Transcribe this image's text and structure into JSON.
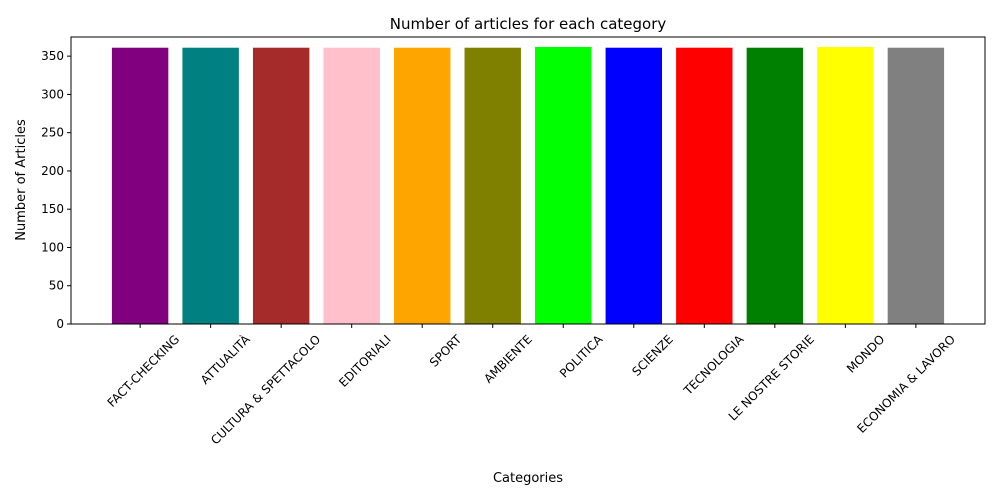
{
  "chart_data": {
    "type": "bar",
    "title": "Number of articles for each category",
    "xlabel": "Categories",
    "ylabel": "Number of Articles",
    "ylim": [
      0,
      375
    ],
    "yticks": [
      0,
      50,
      100,
      150,
      200,
      250,
      300,
      350
    ],
    "grid": false,
    "categories": [
      "FACT-CHECKING",
      "ATTUALITÀ",
      "CULTURA & SPETTACOLO",
      "EDITORIALI",
      "SPORT",
      "AMBIENTE",
      "POLITICA",
      "SCIENZE",
      "TECNOLOGIA",
      "LE NOSTRE STORIE",
      "MONDO",
      "ECONOMIA & LAVORO"
    ],
    "values": [
      361,
      361,
      361,
      361,
      361,
      361,
      362,
      361,
      361,
      361,
      362,
      361
    ],
    "colors": [
      "#800080",
      "#008080",
      "#a52a2a",
      "#ffc0cb",
      "#ffa500",
      "#808000",
      "#00ff00",
      "#0000ff",
      "#ff0000",
      "#008000",
      "#ffff00",
      "#808080"
    ]
  }
}
